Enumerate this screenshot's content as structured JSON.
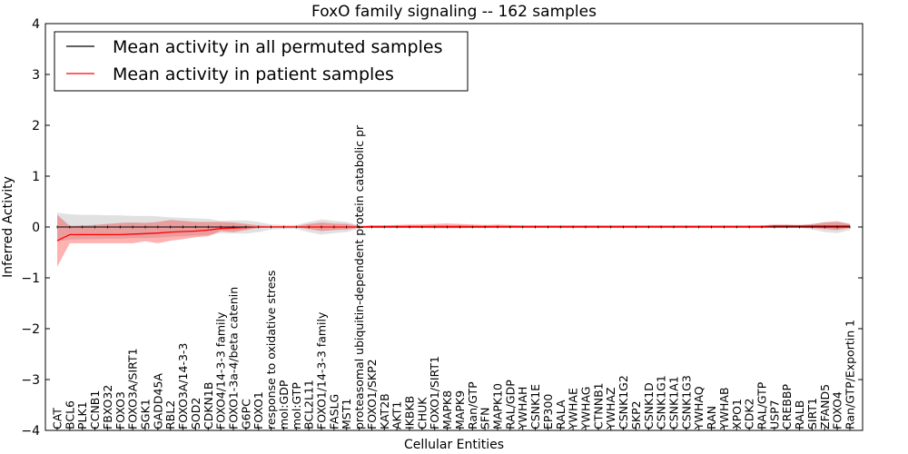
{
  "chart_data": {
    "type": "line",
    "title": "FoxO family signaling -- 162 samples",
    "xlabel": "Cellular Entities",
    "ylabel": "Inferred Activity",
    "ylim": [
      -4,
      4
    ],
    "yticks": [
      -4,
      -3,
      -2,
      -1,
      0,
      1,
      2,
      3,
      4
    ],
    "ytick_labels": [
      "−4",
      "−3",
      "−2",
      "−1",
      "0",
      "1",
      "2",
      "3",
      "4"
    ],
    "legend_position": "top-left",
    "categories": [
      "CAT",
      "BCL6",
      "PLK1",
      "CCNB1",
      "FBXO32",
      "FOXO3",
      "FOXO3A/SIRT1",
      "SGK1",
      "GADD45A",
      "RBL2",
      "FOXO3A/14-3-3",
      "SOD2",
      "CDKN1B",
      "FOXO4/14-3-3 family",
      "FOXO1-3a-4/beta catenin",
      "G6PC",
      "FOXO1",
      "response to oxidative stress",
      "mol:GDP",
      "mol:GTP",
      "BCL2L11",
      "FOXO1/14-3-3 family",
      "FASLG",
      "MST1",
      "proteasomal ubiquitin-dependent protein catabolic pr",
      "FOXO1/SKP2",
      "KAT2B",
      "AKT1",
      "IKBKB",
      "CHUK",
      "FOXO1/SIRT1",
      "MAPK8",
      "MAPK9",
      "Ran/GTP",
      "SFN",
      "MAPK10",
      "RAL/GDP",
      "YWHAH",
      "CSNK1E",
      "EP300",
      "RALA",
      "YWHAE",
      "YWHAG",
      "CTNNB1",
      "YWHAZ",
      "CSNK1G2",
      "SKP2",
      "CSNK1D",
      "CSNK1G1",
      "CSNK1A1",
      "CSNK1G3",
      "YWHAQ",
      "RAN",
      "YWHAB",
      "XPO1",
      "CDK2",
      "RAL/GTP",
      "USP7",
      "CREBBP",
      "RALB",
      "SIRT1",
      "ZFAND5",
      "FOXO4",
      "Ran/GTP/Exportin 1"
    ],
    "series": [
      {
        "name": "Mean activity in all permuted samples",
        "color": "#000000",
        "values": [
          0,
          0,
          0,
          0,
          0,
          0,
          0,
          0,
          0,
          0,
          0,
          0,
          0,
          0,
          0,
          0,
          0,
          0,
          0,
          0,
          0,
          0,
          0,
          0,
          0,
          0,
          0,
          0,
          0,
          0,
          0,
          0,
          0,
          0,
          0,
          0,
          0,
          0,
          0,
          0,
          0,
          0,
          0,
          0,
          0,
          0,
          0,
          0,
          0,
          0,
          0,
          0,
          0,
          0,
          0,
          0,
          0,
          0,
          0,
          0,
          0,
          0,
          0,
          0
        ],
        "lower": [
          -0.28,
          -0.25,
          -0.24,
          -0.24,
          -0.23,
          -0.23,
          -0.22,
          -0.22,
          -0.21,
          -0.19,
          -0.18,
          -0.17,
          -0.16,
          -0.12,
          -0.13,
          -0.13,
          -0.1,
          -0.05,
          -0.04,
          -0.04,
          -0.1,
          -0.15,
          -0.12,
          -0.1,
          -0.03,
          -0.02,
          -0.02,
          -0.02,
          -0.02,
          -0.02,
          -0.03,
          -0.03,
          -0.03,
          -0.02,
          -0.02,
          -0.01,
          -0.01,
          -0.01,
          -0.01,
          -0.01,
          -0.01,
          -0.01,
          -0.01,
          -0.01,
          -0.01,
          -0.01,
          -0.01,
          -0.01,
          -0.01,
          -0.01,
          -0.01,
          -0.01,
          -0.01,
          -0.01,
          -0.01,
          -0.01,
          -0.01,
          -0.02,
          -0.02,
          -0.02,
          -0.05,
          -0.1,
          -0.12,
          -0.06
        ],
        "upper": [
          0.28,
          0.25,
          0.24,
          0.24,
          0.23,
          0.23,
          0.22,
          0.22,
          0.21,
          0.19,
          0.18,
          0.17,
          0.16,
          0.12,
          0.13,
          0.13,
          0.1,
          0.05,
          0.04,
          0.04,
          0.1,
          0.15,
          0.12,
          0.1,
          0.03,
          0.02,
          0.02,
          0.02,
          0.02,
          0.02,
          0.03,
          0.03,
          0.03,
          0.02,
          0.02,
          0.01,
          0.01,
          0.01,
          0.01,
          0.01,
          0.01,
          0.01,
          0.01,
          0.01,
          0.01,
          0.01,
          0.01,
          0.01,
          0.01,
          0.01,
          0.01,
          0.01,
          0.01,
          0.01,
          0.01,
          0.01,
          0.01,
          0.02,
          0.02,
          0.02,
          0.05,
          0.1,
          0.12,
          0.06
        ]
      },
      {
        "name": "Mean activity in patient samples",
        "color": "#ff0000",
        "values": [
          -0.27,
          -0.15,
          -0.15,
          -0.15,
          -0.15,
          -0.15,
          -0.14,
          -0.13,
          -0.12,
          -0.1,
          -0.09,
          -0.08,
          -0.06,
          -0.03,
          -0.02,
          -0.01,
          0.0,
          0.0,
          0.0,
          0.0,
          0.0,
          0.0,
          0.0,
          0.0,
          0.0,
          0.01,
          0.01,
          0.01,
          0.01,
          0.01,
          0.01,
          0.01,
          0.01,
          0.01,
          0.01,
          0.01,
          0.01,
          0.01,
          0.01,
          0.01,
          0.01,
          0.01,
          0.01,
          0.01,
          0.01,
          0.01,
          0.01,
          0.01,
          0.01,
          0.01,
          0.01,
          0.01,
          0.01,
          0.01,
          0.01,
          0.01,
          0.01,
          0.02,
          0.02,
          0.02,
          0.02,
          0.02,
          0.02,
          0.02
        ],
        "lower": [
          -0.78,
          -0.32,
          -0.32,
          -0.32,
          -0.32,
          -0.32,
          -0.32,
          -0.28,
          -0.32,
          -0.27,
          -0.24,
          -0.2,
          -0.18,
          -0.08,
          -0.1,
          -0.06,
          -0.02,
          -0.01,
          -0.01,
          -0.01,
          -0.04,
          -0.08,
          -0.06,
          -0.05,
          -0.02,
          -0.01,
          -0.01,
          -0.01,
          -0.01,
          -0.01,
          -0.01,
          -0.01,
          -0.01,
          -0.01,
          -0.01,
          -0.01,
          -0.01,
          -0.01,
          -0.01,
          -0.01,
          -0.01,
          -0.01,
          -0.01,
          -0.01,
          -0.01,
          -0.01,
          -0.01,
          -0.01,
          -0.01,
          -0.01,
          -0.01,
          -0.01,
          -0.01,
          -0.01,
          -0.01,
          -0.01,
          -0.01,
          -0.01,
          -0.01,
          -0.01,
          -0.02,
          -0.04,
          -0.06,
          -0.02
        ],
        "upper": [
          0.24,
          0.02,
          0.03,
          0.04,
          0.06,
          0.08,
          0.09,
          0.08,
          0.1,
          0.14,
          0.12,
          0.1,
          0.1,
          0.1,
          0.09,
          0.06,
          0.03,
          0.02,
          0.02,
          0.02,
          0.06,
          0.09,
          0.07,
          0.06,
          0.02,
          0.03,
          0.03,
          0.04,
          0.05,
          0.05,
          0.06,
          0.07,
          0.06,
          0.05,
          0.04,
          0.05,
          0.04,
          0.03,
          0.03,
          0.03,
          0.03,
          0.03,
          0.03,
          0.03,
          0.03,
          0.03,
          0.03,
          0.03,
          0.03,
          0.03,
          0.03,
          0.03,
          0.03,
          0.03,
          0.03,
          0.03,
          0.03,
          0.05,
          0.05,
          0.04,
          0.06,
          0.09,
          0.1,
          0.06
        ]
      }
    ]
  }
}
